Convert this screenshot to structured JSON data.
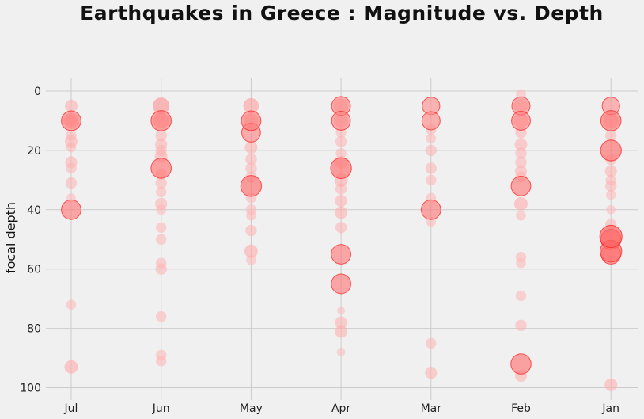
{
  "chart_data": {
    "type": "scatter",
    "title": "Earthquakes in Greece : Magnitude vs. Depth",
    "xlabel": "",
    "ylabel": "focal depth",
    "ylim": [
      104,
      -4
    ],
    "y_inverted": true,
    "grid": true,
    "categories": [
      "Jul",
      "Jun",
      "May",
      "Apr",
      "Mar",
      "Feb",
      "Jan"
    ],
    "yticks": [
      0,
      20,
      40,
      60,
      80,
      100
    ],
    "color_scale": {
      "low": "#ffbcbc",
      "high": "#ff2020"
    },
    "magnitude_range": [
      2.5,
      5.5
    ],
    "points": [
      {
        "x": "Jul",
        "y": 5,
        "mag": 3.2
      },
      {
        "x": "Jul",
        "y": 10,
        "mag": 4.2
      },
      {
        "x": "Jul",
        "y": 10,
        "mag": 3.6
      },
      {
        "x": "Jul",
        "y": 10,
        "mag": 3.0
      },
      {
        "x": "Jul",
        "y": 15,
        "mag": 2.9
      },
      {
        "x": "Jul",
        "y": 17,
        "mag": 3.2
      },
      {
        "x": "Jul",
        "y": 19,
        "mag": 2.8
      },
      {
        "x": "Jul",
        "y": 24,
        "mag": 3.1
      },
      {
        "x": "Jul",
        "y": 26,
        "mag": 2.9
      },
      {
        "x": "Jul",
        "y": 31,
        "mag": 3.0
      },
      {
        "x": "Jul",
        "y": 36,
        "mag": 2.7
      },
      {
        "x": "Jul",
        "y": 40,
        "mag": 4.2
      },
      {
        "x": "Jul",
        "y": 72,
        "mag": 2.8
      },
      {
        "x": "Jul",
        "y": 93,
        "mag": 3.3
      },
      {
        "x": "Jun",
        "y": 5,
        "mag": 3.8
      },
      {
        "x": "Jun",
        "y": 10,
        "mag": 4.3
      },
      {
        "x": "Jun",
        "y": 10,
        "mag": 3.6
      },
      {
        "x": "Jun",
        "y": 15,
        "mag": 3.0
      },
      {
        "x": "Jun",
        "y": 18,
        "mag": 3.1
      },
      {
        "x": "Jun",
        "y": 20,
        "mag": 3.0
      },
      {
        "x": "Jun",
        "y": 22,
        "mag": 3.2
      },
      {
        "x": "Jun",
        "y": 26,
        "mag": 4.3
      },
      {
        "x": "Jun",
        "y": 28,
        "mag": 3.0
      },
      {
        "x": "Jun",
        "y": 31,
        "mag": 3.0
      },
      {
        "x": "Jun",
        "y": 34,
        "mag": 2.9
      },
      {
        "x": "Jun",
        "y": 38,
        "mag": 3.1
      },
      {
        "x": "Jun",
        "y": 40,
        "mag": 2.8
      },
      {
        "x": "Jun",
        "y": 46,
        "mag": 2.9
      },
      {
        "x": "Jun",
        "y": 50,
        "mag": 2.9
      },
      {
        "x": "Jun",
        "y": 58,
        "mag": 2.9
      },
      {
        "x": "Jun",
        "y": 60,
        "mag": 3.0
      },
      {
        "x": "Jun",
        "y": 76,
        "mag": 2.9
      },
      {
        "x": "Jun",
        "y": 89,
        "mag": 2.9
      },
      {
        "x": "Jun",
        "y": 91,
        "mag": 2.9
      },
      {
        "x": "May",
        "y": 5,
        "mag": 3.6
      },
      {
        "x": "May",
        "y": 10,
        "mag": 4.2
      },
      {
        "x": "May",
        "y": 10,
        "mag": 3.5
      },
      {
        "x": "May",
        "y": 14,
        "mag": 4.1
      },
      {
        "x": "May",
        "y": 19,
        "mag": 3.2
      },
      {
        "x": "May",
        "y": 23,
        "mag": 3.0
      },
      {
        "x": "May",
        "y": 26,
        "mag": 3.0
      },
      {
        "x": "May",
        "y": 29,
        "mag": 3.0
      },
      {
        "x": "May",
        "y": 32,
        "mag": 4.4
      },
      {
        "x": "May",
        "y": 36,
        "mag": 2.9
      },
      {
        "x": "May",
        "y": 40,
        "mag": 2.9
      },
      {
        "x": "May",
        "y": 42,
        "mag": 2.8
      },
      {
        "x": "May",
        "y": 47,
        "mag": 3.0
      },
      {
        "x": "May",
        "y": 54,
        "mag": 3.3
      },
      {
        "x": "May",
        "y": 57,
        "mag": 2.8
      },
      {
        "x": "Apr",
        "y": 5,
        "mag": 4.1
      },
      {
        "x": "Apr",
        "y": 5,
        "mag": 3.5
      },
      {
        "x": "Apr",
        "y": 10,
        "mag": 4.1
      },
      {
        "x": "Apr",
        "y": 10,
        "mag": 3.4
      },
      {
        "x": "Apr",
        "y": 14,
        "mag": 2.9
      },
      {
        "x": "Apr",
        "y": 17,
        "mag": 3.0
      },
      {
        "x": "Apr",
        "y": 21,
        "mag": 2.9
      },
      {
        "x": "Apr",
        "y": 24,
        "mag": 3.2
      },
      {
        "x": "Apr",
        "y": 26,
        "mag": 4.4
      },
      {
        "x": "Apr",
        "y": 30,
        "mag": 3.3
      },
      {
        "x": "Apr",
        "y": 33,
        "mag": 3.0
      },
      {
        "x": "Apr",
        "y": 37,
        "mag": 3.1
      },
      {
        "x": "Apr",
        "y": 41,
        "mag": 3.2
      },
      {
        "x": "Apr",
        "y": 46,
        "mag": 3.0
      },
      {
        "x": "Apr",
        "y": 55,
        "mag": 4.2
      },
      {
        "x": "Apr",
        "y": 65,
        "mag": 4.2
      },
      {
        "x": "Apr",
        "y": 74,
        "mag": 2.5
      },
      {
        "x": "Apr",
        "y": 78,
        "mag": 3.1
      },
      {
        "x": "Apr",
        "y": 81,
        "mag": 3.2
      },
      {
        "x": "Apr",
        "y": 88,
        "mag": 2.6
      },
      {
        "x": "Mar",
        "y": 5,
        "mag": 3.9
      },
      {
        "x": "Mar",
        "y": 10,
        "mag": 4.0
      },
      {
        "x": "Mar",
        "y": 13,
        "mag": 2.9
      },
      {
        "x": "Mar",
        "y": 16,
        "mag": 2.8
      },
      {
        "x": "Mar",
        "y": 20,
        "mag": 3.0
      },
      {
        "x": "Mar",
        "y": 26,
        "mag": 3.0
      },
      {
        "x": "Mar",
        "y": 30,
        "mag": 2.9
      },
      {
        "x": "Mar",
        "y": 36,
        "mag": 2.8
      },
      {
        "x": "Mar",
        "y": 40,
        "mag": 4.2
      },
      {
        "x": "Mar",
        "y": 44,
        "mag": 2.8
      },
      {
        "x": "Mar",
        "y": 85,
        "mag": 2.9
      },
      {
        "x": "Mar",
        "y": 95,
        "mag": 3.1
      },
      {
        "x": "Feb",
        "y": 1,
        "mag": 2.8
      },
      {
        "x": "Feb",
        "y": 5,
        "mag": 4.0
      },
      {
        "x": "Feb",
        "y": 5,
        "mag": 3.4
      },
      {
        "x": "Feb",
        "y": 10,
        "mag": 4.1
      },
      {
        "x": "Feb",
        "y": 10,
        "mag": 3.5
      },
      {
        "x": "Feb",
        "y": 14,
        "mag": 3.0
      },
      {
        "x": "Feb",
        "y": 18,
        "mag": 3.2
      },
      {
        "x": "Feb",
        "y": 21,
        "mag": 3.0
      },
      {
        "x": "Feb",
        "y": 24,
        "mag": 3.0
      },
      {
        "x": "Feb",
        "y": 27,
        "mag": 3.1
      },
      {
        "x": "Feb",
        "y": 29,
        "mag": 3.0
      },
      {
        "x": "Feb",
        "y": 32,
        "mag": 4.2
      },
      {
        "x": "Feb",
        "y": 38,
        "mag": 3.3
      },
      {
        "x": "Feb",
        "y": 42,
        "mag": 2.8
      },
      {
        "x": "Feb",
        "y": 56,
        "mag": 2.9
      },
      {
        "x": "Feb",
        "y": 58,
        "mag": 2.8
      },
      {
        "x": "Feb",
        "y": 69,
        "mag": 2.9
      },
      {
        "x": "Feb",
        "y": 79,
        "mag": 3.0
      },
      {
        "x": "Feb",
        "y": 92,
        "mag": 4.3
      },
      {
        "x": "Feb",
        "y": 96,
        "mag": 3.1
      },
      {
        "x": "Jan",
        "y": 5,
        "mag": 3.9
      },
      {
        "x": "Jan",
        "y": 10,
        "mag": 4.3
      },
      {
        "x": "Jan",
        "y": 10,
        "mag": 3.6
      },
      {
        "x": "Jan",
        "y": 15,
        "mag": 3.0
      },
      {
        "x": "Jan",
        "y": 20,
        "mag": 4.4
      },
      {
        "x": "Jan",
        "y": 23,
        "mag": 3.0
      },
      {
        "x": "Jan",
        "y": 27,
        "mag": 3.1
      },
      {
        "x": "Jan",
        "y": 30,
        "mag": 2.9
      },
      {
        "x": "Jan",
        "y": 32,
        "mag": 3.0
      },
      {
        "x": "Jan",
        "y": 35,
        "mag": 2.8
      },
      {
        "x": "Jan",
        "y": 40,
        "mag": 2.7
      },
      {
        "x": "Jan",
        "y": 45,
        "mag": 3.0
      },
      {
        "x": "Jan",
        "y": 49,
        "mag": 4.6
      },
      {
        "x": "Jan",
        "y": 50,
        "mag": 4.3
      },
      {
        "x": "Jan",
        "y": 54,
        "mag": 4.5
      },
      {
        "x": "Jan",
        "y": 55,
        "mag": 4.2
      },
      {
        "x": "Jan",
        "y": 99,
        "mag": 3.2
      }
    ]
  }
}
